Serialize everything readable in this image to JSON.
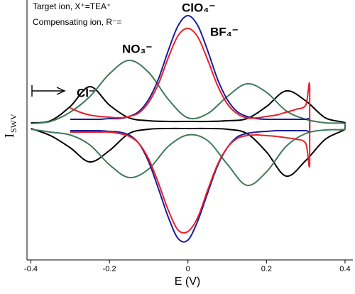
{
  "chart_data": {
    "type": "line",
    "annotations": [
      "Target ion, X⁺=TEA⁺",
      "Compensating ion, R⁻="
    ],
    "x_label": "E  (V)",
    "y_label": "I",
    "y_label_sub": "SWV",
    "xlim": [
      -0.41,
      0.42
    ],
    "xticks": [
      -0.4,
      -0.2,
      0,
      0.2,
      0.4
    ],
    "ylim": [
      -1.9,
      1.76
    ],
    "series": [
      {
        "name": "Cl⁻",
        "color": "#000000",
        "x": [
          -0.4,
          -0.35,
          -0.3,
          -0.25,
          -0.2,
          -0.15,
          -0.1,
          -0.05,
          0,
          0.05,
          0.1,
          0.15,
          0.2,
          0.25,
          0.3,
          0.35,
          0.4,
          0.4,
          0.35,
          0.3,
          0.25,
          0.2,
          0.15,
          0.1,
          0.05,
          0,
          -0.05,
          -0.1,
          -0.15,
          -0.2,
          -0.25,
          -0.3,
          -0.35,
          -0.4
        ],
        "values": [
          0.03,
          0.06,
          0.26,
          0.54,
          0.28,
          0.1,
          0.06,
          0.05,
          0.05,
          0.05,
          0.06,
          0.09,
          0.26,
          0.48,
          0.34,
          0.1,
          0.03,
          -0.06,
          -0.2,
          -0.5,
          -0.72,
          -0.38,
          -0.12,
          -0.06,
          -0.05,
          -0.05,
          -0.05,
          -0.06,
          -0.12,
          -0.36,
          -0.52,
          -0.32,
          -0.15,
          -0.05
        ]
      },
      {
        "name": "NO₃⁻",
        "color": "#3f7a5a",
        "x": [
          -0.4,
          -0.35,
          -0.3,
          -0.25,
          -0.2,
          -0.15,
          -0.1,
          -0.05,
          0,
          0.05,
          0.1,
          0.15,
          0.2,
          0.25,
          0.3,
          0.35,
          0.4,
          0.4,
          0.35,
          0.3,
          0.25,
          0.2,
          0.15,
          0.1,
          0.05,
          0,
          -0.05,
          -0.1,
          -0.15,
          -0.2,
          -0.25,
          -0.3,
          -0.35,
          -0.4
        ],
        "values": [
          0.02,
          0.05,
          0.18,
          0.4,
          0.72,
          0.91,
          0.74,
          0.36,
          0.1,
          0.16,
          0.4,
          0.58,
          0.46,
          0.2,
          0.08,
          0.03,
          0.02,
          -0.06,
          -0.07,
          -0.12,
          -0.3,
          -0.66,
          -0.85,
          -0.55,
          -0.22,
          -0.14,
          -0.3,
          -0.62,
          -0.74,
          -0.56,
          -0.28,
          -0.14,
          -0.1,
          -0.06
        ]
      },
      {
        "name": "ClO₄⁻",
        "color": "#1c1c9c",
        "x": [
          -0.3,
          -0.275,
          -0.25,
          -0.225,
          -0.2,
          -0.175,
          -0.15,
          -0.125,
          -0.1,
          -0.075,
          -0.05,
          -0.025,
          0,
          0.025,
          0.05,
          0.075,
          0.1,
          0.125,
          0.15,
          0.175,
          0.2,
          0.225,
          0.25,
          0.275,
          0.3,
          0.31,
          0.31,
          0.3,
          0.275,
          0.25,
          0.225,
          0.2,
          0.175,
          0.15,
          0.125,
          0.1,
          0.075,
          0.05,
          0.025,
          0,
          -0.025,
          -0.05,
          -0.075,
          -0.1,
          -0.125,
          -0.15,
          -0.175,
          -0.2,
          -0.225,
          -0.25,
          -0.275,
          -0.3
        ],
        "values": [
          0.08,
          0.08,
          0.08,
          0.08,
          0.09,
          0.09,
          0.12,
          0.19,
          0.36,
          0.65,
          1.05,
          1.4,
          1.54,
          1.4,
          1.05,
          0.65,
          0.36,
          0.19,
          0.12,
          0.09,
          0.08,
          0.08,
          0.08,
          0.08,
          0.08,
          0.08,
          -0.08,
          -0.08,
          -0.08,
          -0.08,
          -0.08,
          -0.09,
          -0.1,
          -0.12,
          -0.17,
          -0.32,
          -0.58,
          -0.96,
          -1.35,
          -1.62,
          -1.6,
          -1.3,
          -0.9,
          -0.52,
          -0.26,
          -0.14,
          -0.1,
          -0.09,
          -0.08,
          -0.08,
          -0.08,
          -0.08
        ]
      },
      {
        "name": "BF₄⁻",
        "color": "#e8202a",
        "x": [
          -0.3,
          -0.275,
          -0.25,
          -0.225,
          -0.2,
          -0.175,
          -0.15,
          -0.125,
          -0.1,
          -0.075,
          -0.05,
          -0.025,
          0,
          0.025,
          0.05,
          0.075,
          0.1,
          0.125,
          0.15,
          0.175,
          0.2,
          0.225,
          0.25,
          0.275,
          0.3,
          0.31,
          0.31,
          0.3,
          0.275,
          0.25,
          0.225,
          0.2,
          0.175,
          0.15,
          0.125,
          0.1,
          0.075,
          0.05,
          0.025,
          0,
          -0.025,
          -0.05,
          -0.075,
          -0.1,
          -0.125,
          -0.15,
          -0.175,
          -0.2,
          -0.225,
          -0.25,
          -0.275,
          -0.3
        ],
        "values": [
          0.24,
          0.18,
          0.14,
          0.12,
          0.11,
          0.1,
          0.12,
          0.17,
          0.32,
          0.58,
          0.95,
          1.26,
          1.36,
          1.24,
          0.92,
          0.56,
          0.3,
          0.16,
          0.1,
          0.1,
          0.12,
          0.14,
          0.18,
          0.22,
          0.28,
          0.56,
          -0.56,
          -0.26,
          -0.2,
          -0.18,
          -0.16,
          -0.15,
          -0.14,
          -0.15,
          -0.19,
          -0.32,
          -0.56,
          -0.92,
          -1.3,
          -1.5,
          -1.48,
          -1.2,
          -0.82,
          -0.48,
          -0.26,
          -0.16,
          -0.12,
          -0.1,
          -0.1,
          -0.1,
          -0.1,
          -0.1
        ]
      }
    ]
  }
}
